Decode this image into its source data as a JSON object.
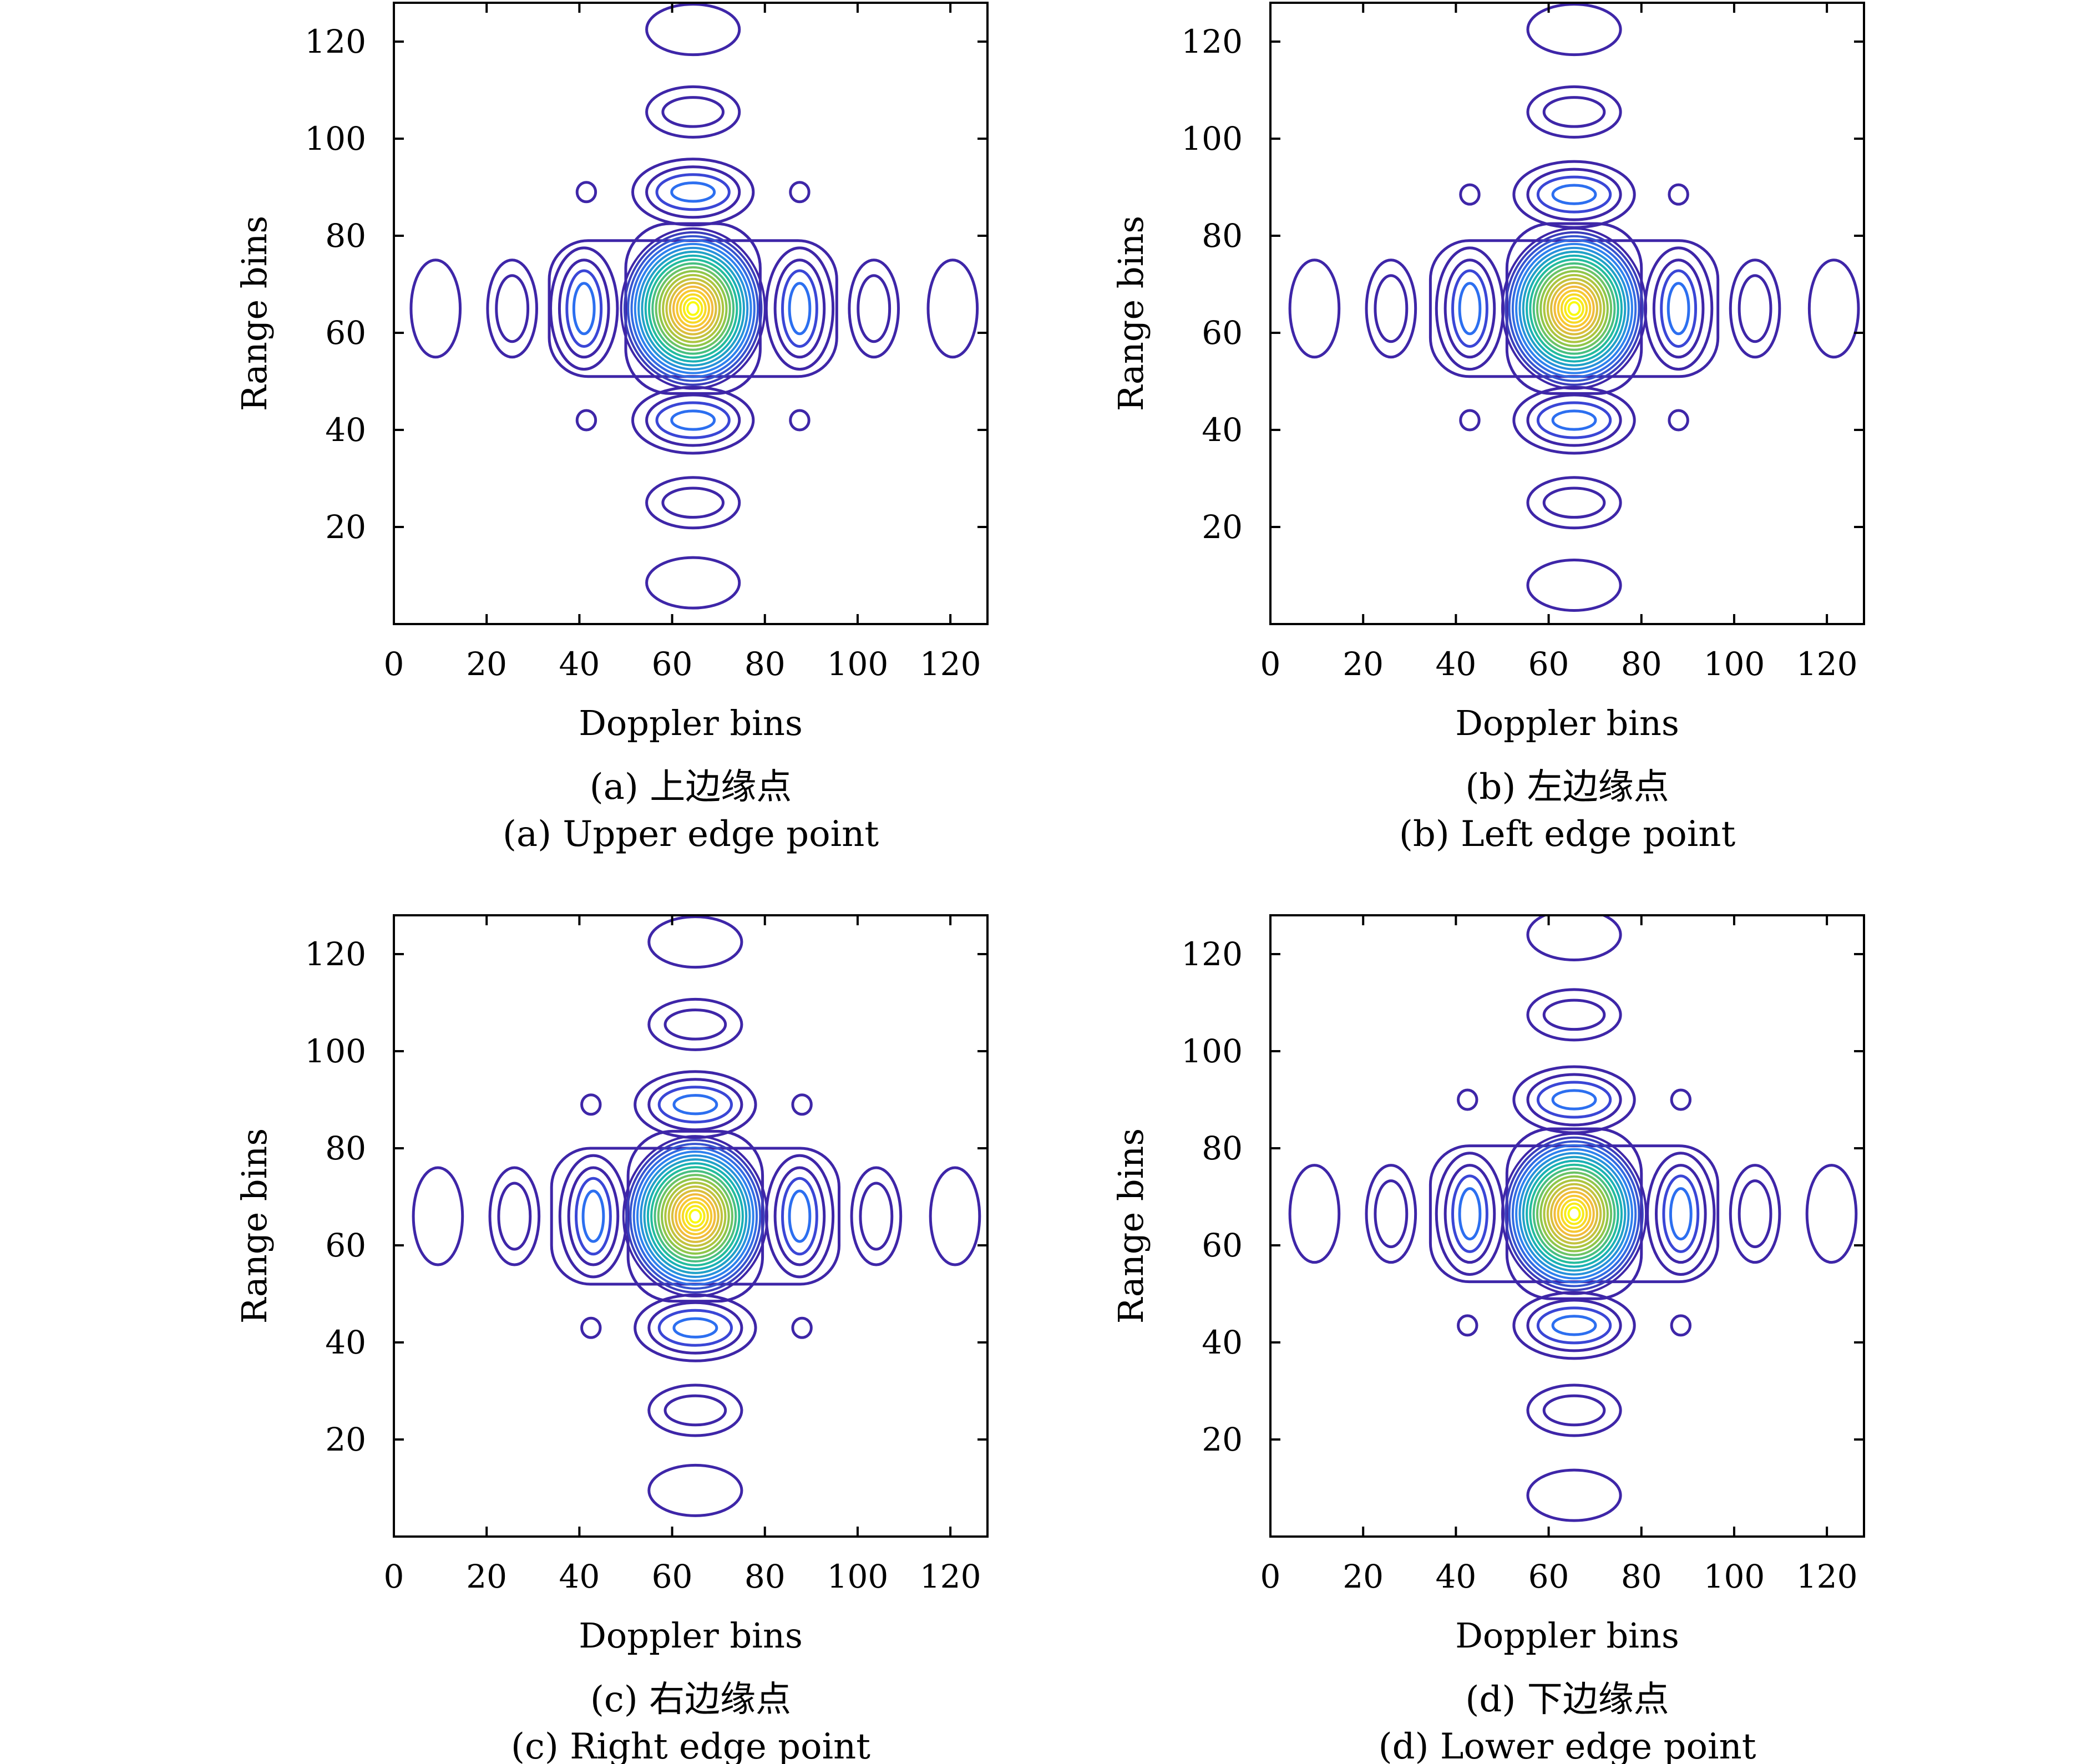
{
  "chart_data": [
    {
      "type": "contour",
      "panel": "a",
      "caption_cn": "(a) 上边缘点",
      "caption_en": "(a) Upper edge point",
      "xlabel": "Doppler bins",
      "ylabel": "Range bins",
      "xlim": [
        0,
        128
      ],
      "ylim": [
        0,
        128
      ],
      "xticks": [
        "0",
        "20",
        "40",
        "60",
        "80",
        "100",
        "120"
      ],
      "yticks": [
        "20",
        "40",
        "60",
        "80",
        "100",
        "120"
      ],
      "peak": {
        "doppler": 64.5,
        "range": 65
      },
      "doppler_sidelobes": [
        9,
        25.5,
        41,
        87.5,
        103.5,
        120.5
      ],
      "range_sidelobes": [
        8.5,
        25,
        42,
        89,
        105.5,
        122.5
      ],
      "diagonal_sidelobes": [
        [
          41.5,
          42
        ],
        [
          87.5,
          42
        ],
        [
          41.5,
          89
        ],
        [
          87.5,
          89
        ]
      ],
      "grid": false
    },
    {
      "type": "contour",
      "panel": "b",
      "caption_cn": "(b) 左边缘点",
      "caption_en": "(b) Left edge point",
      "xlabel": "Doppler bins",
      "ylabel": "Range bins",
      "xlim": [
        0,
        128
      ],
      "ylim": [
        0,
        128
      ],
      "xticks": [
        "0",
        "20",
        "40",
        "60",
        "80",
        "100",
        "120"
      ],
      "yticks": [
        "20",
        "40",
        "60",
        "80",
        "100",
        "120"
      ],
      "peak": {
        "doppler": 65.5,
        "range": 65
      },
      "doppler_sidelobes": [
        9.5,
        26,
        43,
        88,
        104.5,
        121.5
      ],
      "range_sidelobes": [
        8,
        25,
        42,
        88.5,
        105.5,
        122.5
      ],
      "diagonal_sidelobes": [
        [
          43,
          42
        ],
        [
          88,
          42
        ],
        [
          43,
          88.5
        ],
        [
          88,
          88.5
        ]
      ],
      "grid": false
    },
    {
      "type": "contour",
      "panel": "c",
      "caption_cn": "(c) 右边缘点",
      "caption_en": "(c) Right edge point",
      "xlabel": "Doppler bins",
      "ylabel": "Range bins",
      "xlim": [
        0,
        128
      ],
      "ylim": [
        0,
        128
      ],
      "xticks": [
        "0",
        "20",
        "40",
        "60",
        "80",
        "100",
        "120"
      ],
      "yticks": [
        "20",
        "40",
        "60",
        "80",
        "100",
        "120"
      ],
      "peak": {
        "doppler": 65,
        "range": 66
      },
      "doppler_sidelobes": [
        9.5,
        26,
        43,
        87.5,
        104,
        121
      ],
      "range_sidelobes": [
        9.5,
        26,
        43,
        89,
        105.5,
        122.5
      ],
      "diagonal_sidelobes": [
        [
          42.5,
          43
        ],
        [
          88,
          43
        ],
        [
          42.5,
          89
        ],
        [
          88,
          89
        ]
      ],
      "grid": false
    },
    {
      "type": "contour",
      "panel": "d",
      "caption_cn": "(d) 下边缘点",
      "caption_en": "(d) Lower edge point",
      "xlabel": "Doppler bins",
      "ylabel": "Range bins",
      "xlim": [
        0,
        128
      ],
      "ylim": [
        0,
        128
      ],
      "xticks": [
        "0",
        "20",
        "40",
        "60",
        "80",
        "100",
        "120"
      ],
      "yticks": [
        "20",
        "40",
        "60",
        "80",
        "100",
        "120"
      ],
      "peak": {
        "doppler": 65.5,
        "range": 66.5
      },
      "doppler_sidelobes": [
        9.5,
        26,
        43,
        88.5,
        104.5,
        121
      ],
      "range_sidelobes": [
        8.5,
        26,
        43.5,
        90,
        107.5,
        124
      ],
      "diagonal_sidelobes": [
        [
          42.5,
          43.5
        ],
        [
          88.5,
          43.5
        ],
        [
          42.5,
          90
        ],
        [
          88.5,
          90
        ]
      ],
      "grid": false
    }
  ],
  "colors": {
    "low": "#3e26a8",
    "mid_low": "#2f7ef2",
    "mid": "#16bba8",
    "mid_high": "#9dc73f",
    "high": "#f6ba3c",
    "peak": "#f9fb0e",
    "axis": "#000000"
  }
}
